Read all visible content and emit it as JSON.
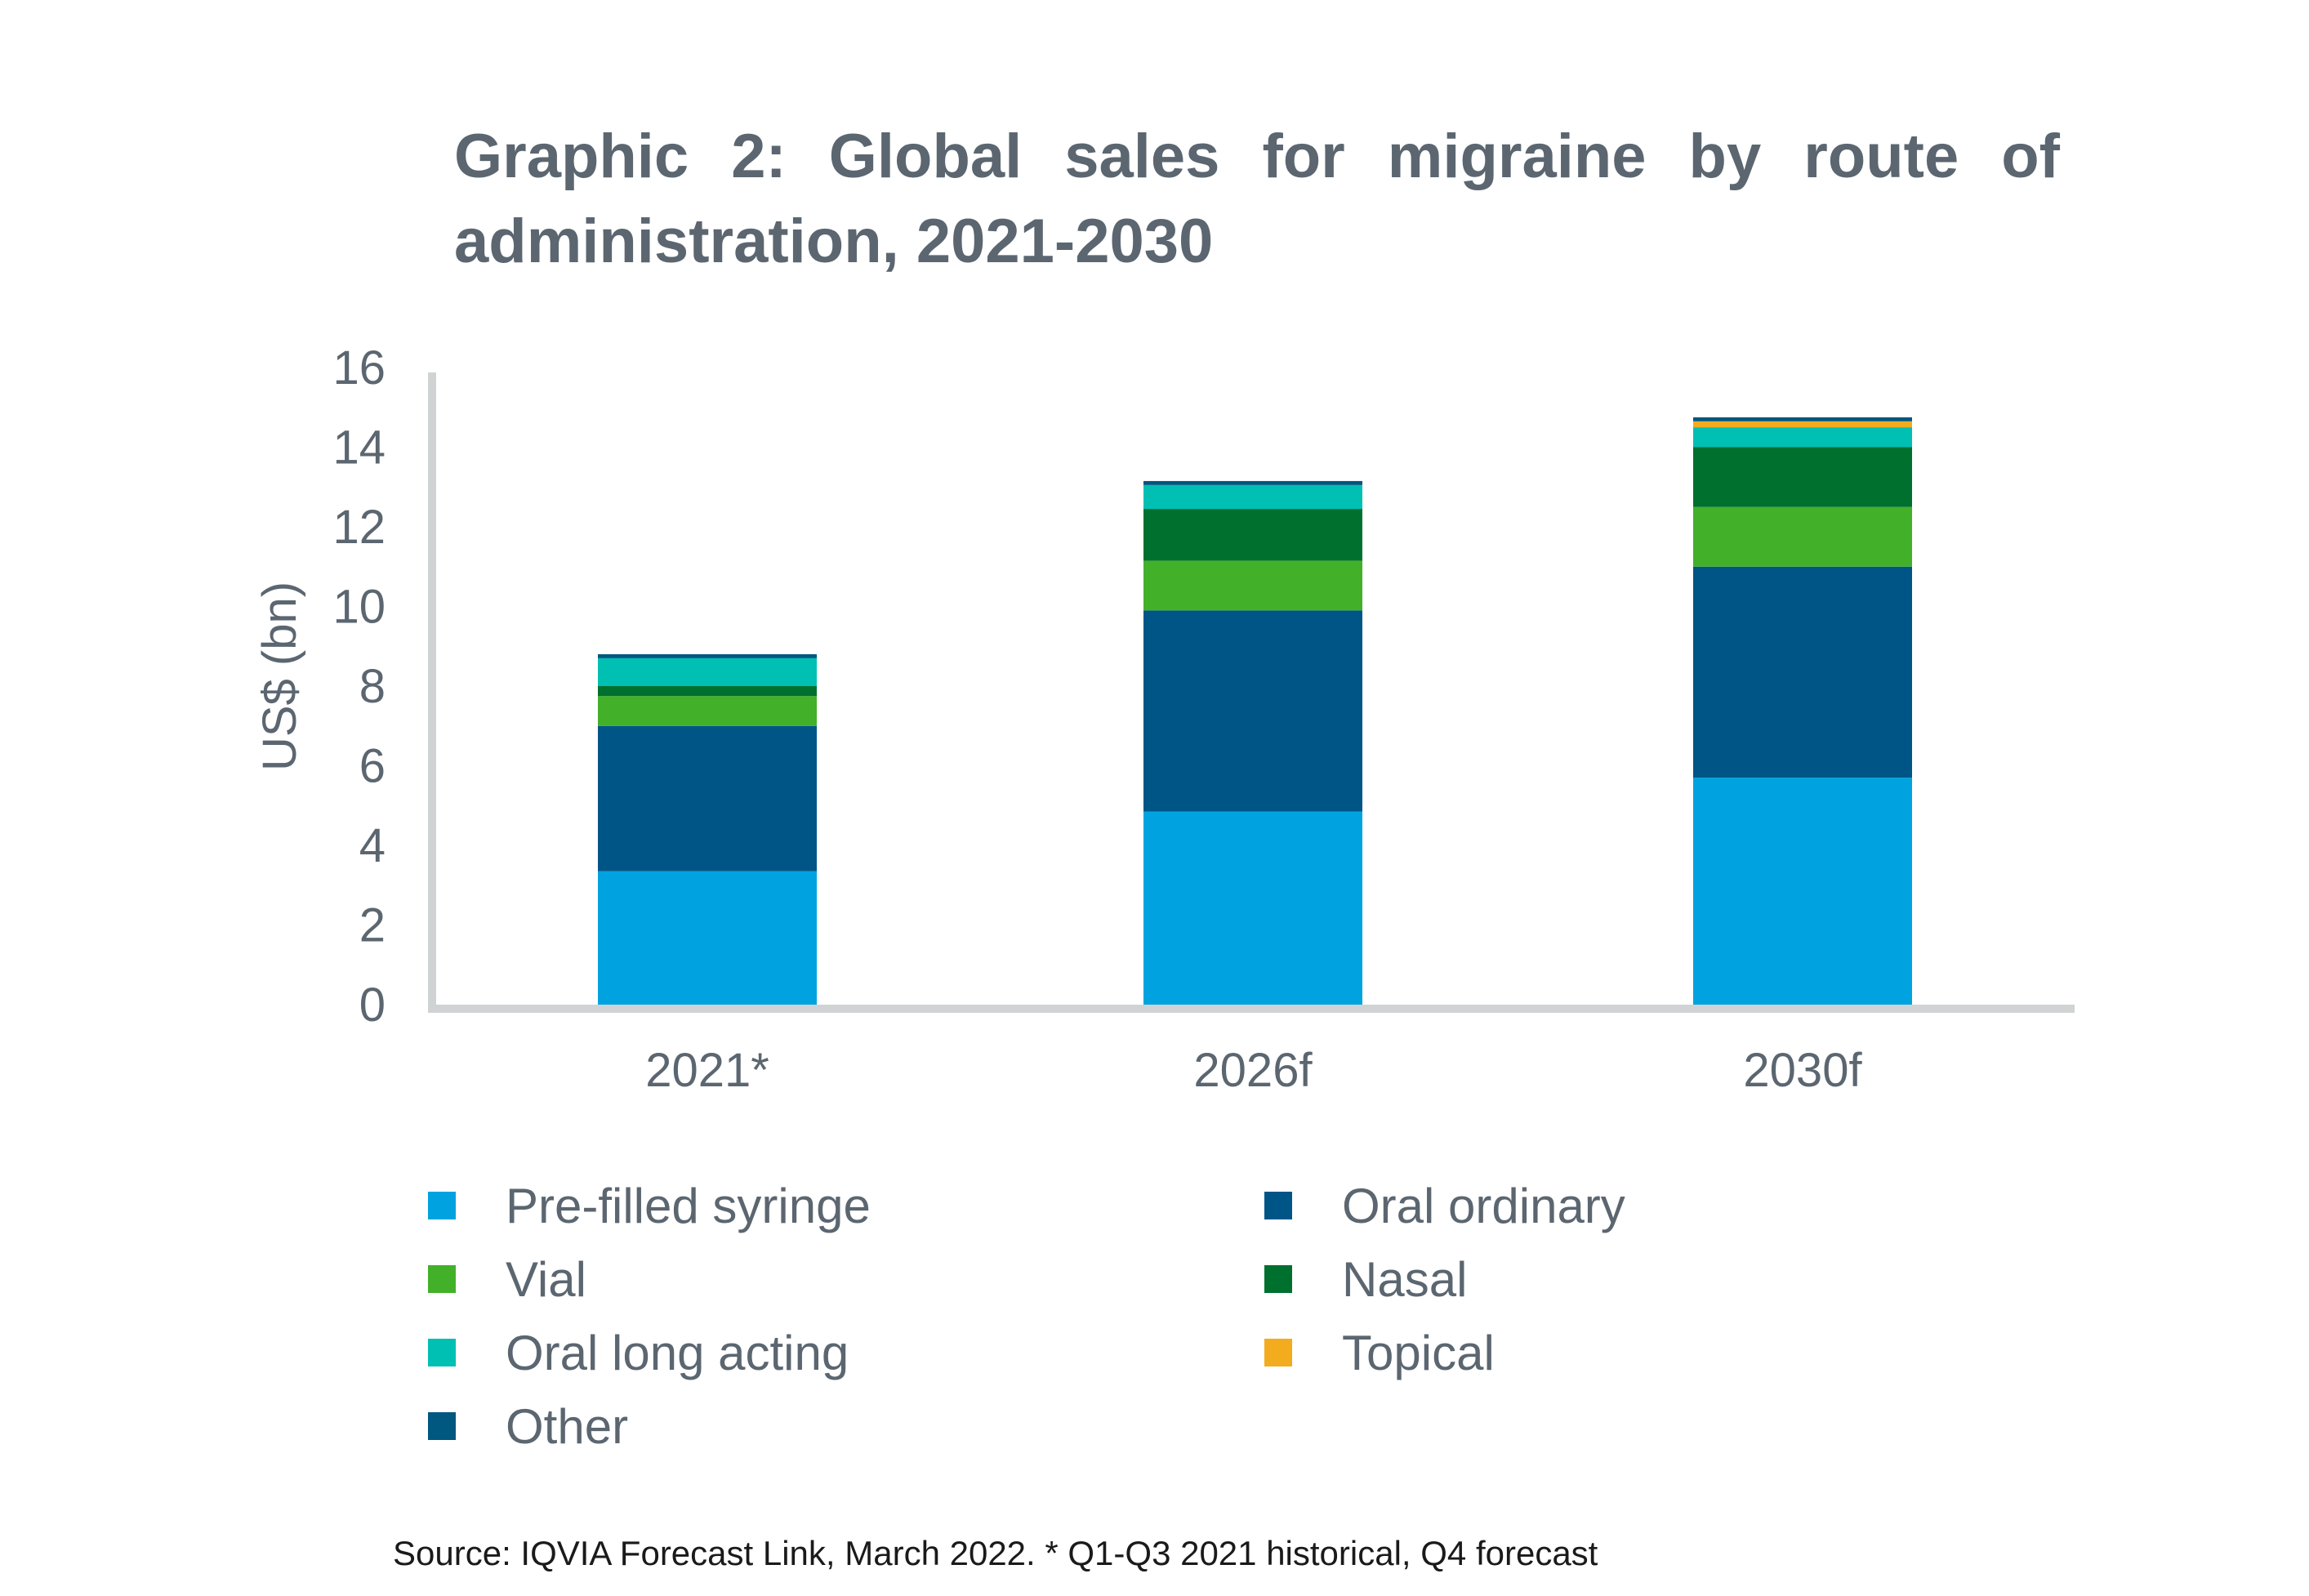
{
  "chart_data": {
    "type": "bar",
    "stacked": true,
    "title": "Graphic 2: Global sales for migraine by route of administration, 2021-2030",
    "xlabel": "",
    "ylabel": "US$ (bn)",
    "ylim": [
      0,
      16
    ],
    "yticks": [
      "0",
      "2",
      "4",
      "6",
      "8",
      "10",
      "12",
      "14",
      "16"
    ],
    "categories": [
      "2021*",
      "2026f",
      "2030f"
    ],
    "series": [
      {
        "name": "Pre-filled syringe",
        "color": "#00a3e0",
        "values": [
          3.35,
          4.85,
          5.7
        ]
      },
      {
        "name": "Oral ordinary",
        "color": "#005587",
        "values": [
          3.65,
          5.05,
          5.3
        ]
      },
      {
        "name": "Vial",
        "color": "#43b02a",
        "values": [
          0.75,
          1.25,
          1.5
        ]
      },
      {
        "name": "Nasal",
        "color": "#00702e",
        "values": [
          0.25,
          1.3,
          1.5
        ]
      },
      {
        "name": "Oral long acting",
        "color": "#00bfb3",
        "values": [
          0.7,
          0.6,
          0.5
        ]
      },
      {
        "name": "Topical",
        "color": "#f2ac1e",
        "values": [
          0,
          0,
          0.15
        ]
      },
      {
        "name": "Other",
        "color": "#00577f",
        "values": [
          0.1,
          0.1,
          0.1
        ]
      }
    ],
    "grid": false,
    "legend_position": "bottom",
    "legend_order": [
      "Pre-filled syringe",
      "Oral ordinary",
      "Vial",
      "Nasal",
      "Oral long acting",
      "Topical",
      "Other"
    ],
    "source": "Source: IQVIA Forecast Link, March 2022. * Q1-Q3 2021 historical, Q4 forecast"
  }
}
